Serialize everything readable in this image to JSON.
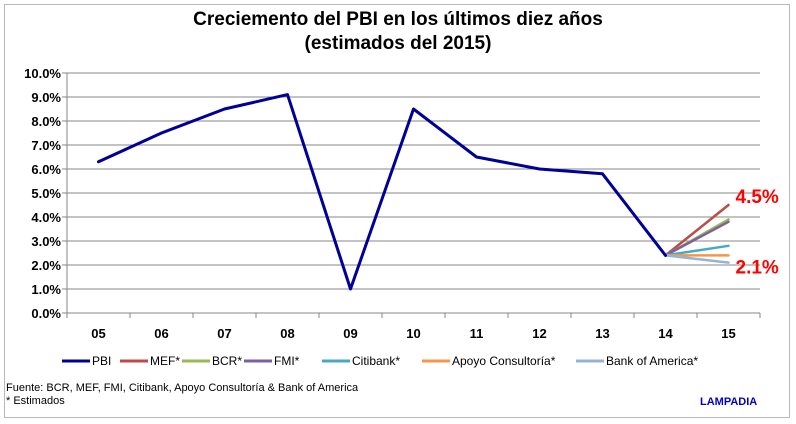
{
  "chart_data": {
    "type": "line",
    "title": [
      "Creciemento del PBI en los últimos diez años",
      "(estimados del 2015)"
    ],
    "xlabel": "",
    "ylabel": "",
    "categories": [
      "05",
      "06",
      "07",
      "08",
      "09",
      "10",
      "11",
      "12",
      "13",
      "14",
      "15"
    ],
    "ylim": [
      0,
      10
    ],
    "yticks": [
      "0.0%",
      "1.0%",
      "2.0%",
      "3.0%",
      "4.0%",
      "5.0%",
      "6.0%",
      "7.0%",
      "8.0%",
      "9.0%",
      "10.0%"
    ],
    "grid": true,
    "legend_position": "bottom",
    "series": [
      {
        "name": "PBI",
        "color": "#000099",
        "values": [
          6.3,
          7.5,
          8.5,
          9.1,
          1.0,
          8.5,
          6.5,
          6.0,
          5.8,
          2.4,
          null
        ]
      },
      {
        "name": "MEF*",
        "color": "#be4b48",
        "values": [
          null,
          null,
          null,
          null,
          null,
          null,
          null,
          null,
          null,
          2.4,
          4.5
        ]
      },
      {
        "name": "BCR*",
        "color": "#98b954",
        "values": [
          null,
          null,
          null,
          null,
          null,
          null,
          null,
          null,
          null,
          2.4,
          3.9
        ]
      },
      {
        "name": "FMI*",
        "color": "#7d60a0",
        "values": [
          null,
          null,
          null,
          null,
          null,
          null,
          null,
          null,
          null,
          2.4,
          3.8
        ]
      },
      {
        "name": "Citibank*",
        "color": "#46aac5",
        "values": [
          null,
          null,
          null,
          null,
          null,
          null,
          null,
          null,
          null,
          2.4,
          2.8
        ]
      },
      {
        "name": "Apoyo Consultoría*",
        "color": "#f79646",
        "values": [
          null,
          null,
          null,
          null,
          null,
          null,
          null,
          null,
          null,
          2.4,
          2.4
        ]
      },
      {
        "name": "Bank of America*",
        "color": "#95b3d7",
        "values": [
          null,
          null,
          null,
          null,
          null,
          null,
          null,
          null,
          null,
          2.4,
          2.1
        ]
      }
    ],
    "annotations": [
      {
        "text": "4.5%",
        "x": "15",
        "y": 4.5
      },
      {
        "text": "2.1%",
        "x": "15",
        "y": 2.1
      }
    ]
  },
  "footer": {
    "source": "Fuente: BCR, MEF, FMI, Citibank, Apoyo Consultoría & Bank of America",
    "note": "* Estimados",
    "brand": "LAMPADIA"
  }
}
